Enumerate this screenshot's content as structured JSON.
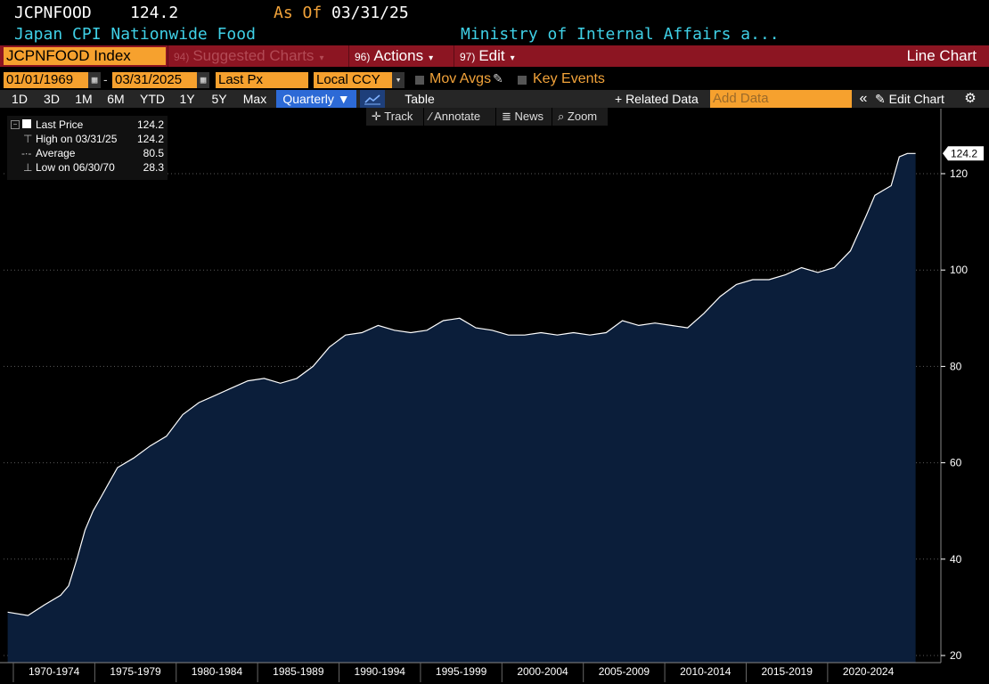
{
  "header": {
    "ticker": "JCPNFOOD",
    "last_value": "124.2",
    "as_of_label": "As Of",
    "as_of_date": "03/31/25",
    "description": "Japan CPI Nationwide Food",
    "source": "Ministry of Internal Affairs a..."
  },
  "menubar": {
    "security": "JCPNFOOD Index",
    "suggested_num": "94)",
    "suggested_label": "Suggested Charts",
    "actions_num": "96)",
    "actions_label": "Actions",
    "edit_num": "97)",
    "edit_label": "Edit",
    "view_label": "Line Chart",
    "caret": "▾"
  },
  "controls": {
    "start_date": "01/01/1969",
    "date_sep": "-",
    "end_date": "03/31/2025",
    "field": "Last Px",
    "currency": "Local CCY",
    "mov_avgs": "Mov Avgs",
    "key_events": "Key Events",
    "calendar_glyph": "▦",
    "pencil_glyph": "✎"
  },
  "range_buttons": [
    "1D",
    "3D",
    "1M",
    "6M",
    "YTD",
    "1Y",
    "5Y",
    "Max"
  ],
  "toolbar": {
    "period": "Quarterly",
    "table": "Table",
    "related": "+ Related Data",
    "add_data_placeholder": "Add Data",
    "collapse": "«",
    "edit_chart": "Edit Chart",
    "gear": "⚙",
    "track": "Track",
    "annotate": "Annotate",
    "news": "News",
    "zoom": "Zoom"
  },
  "legend": {
    "last_label": "Last Price",
    "last_value": "124.2",
    "high_label": "High on 03/31/25",
    "high_value": "124.2",
    "avg_label": "Average",
    "avg_value": "80.5",
    "low_label": "Low on 06/30/70",
    "low_value": "28.3"
  },
  "colors": {
    "line": "#ffffff",
    "area": "#0b1e3a",
    "grid": "#5a5a5a",
    "accent_orange": "#f6a12e",
    "header_red": "#8c1522",
    "cyan": "#3fd0e6"
  },
  "chart_data": {
    "type": "area",
    "series": [
      {
        "name": "Last Price",
        "x": [
          1969.25,
          1970.5,
          1971.5,
          1972.5,
          1973.0,
          1973.5,
          1974.0,
          1974.5,
          1975.0,
          1975.5,
          1976.0,
          1977.0,
          1978.0,
          1979.0,
          1980.0,
          1981.0,
          1982.0,
          1983.0,
          1984.0,
          1985.0,
          1986.0,
          1987.0,
          1988.0,
          1989.0,
          1990.0,
          1991.0,
          1992.0,
          1993.0,
          1994.0,
          1995.0,
          1996.0,
          1997.0,
          1998.0,
          1999.0,
          2000.0,
          2001.0,
          2002.0,
          2003.0,
          2004.0,
          2005.0,
          2006.0,
          2007.0,
          2008.0,
          2009.0,
          2010.0,
          2011.0,
          2012.0,
          2013.0,
          2014.0,
          2015.0,
          2016.0,
          2017.0,
          2018.0,
          2019.0,
          2020.0,
          2021.0,
          2022.0,
          2022.5,
          2023.0,
          2023.5,
          2024.0,
          2024.5,
          2025.0
        ],
        "y": [
          29.0,
          28.3,
          30.5,
          32.5,
          34.5,
          40.0,
          46.0,
          50.0,
          53.0,
          56.0,
          59.0,
          61.0,
          63.5,
          65.5,
          70.0,
          72.5,
          74.0,
          75.5,
          77.0,
          77.5,
          76.5,
          77.5,
          80.0,
          84.0,
          86.5,
          87.0,
          88.5,
          87.5,
          87.0,
          87.5,
          89.5,
          90.0,
          88.0,
          87.5,
          86.5,
          86.5,
          87.0,
          86.5,
          87.0,
          86.5,
          87.0,
          89.5,
          88.5,
          89.0,
          88.5,
          88.0,
          91.0,
          94.5,
          97.0,
          98.0,
          98.0,
          99.0,
          100.5,
          99.5,
          100.5,
          104.0,
          111.5,
          115.5,
          116.5,
          117.5,
          123.5,
          124.2,
          124.2
        ]
      }
    ],
    "xlim": [
      1969,
      2026.5
    ],
    "ylim": [
      20,
      130
    ],
    "y_ticks": [
      20,
      40,
      60,
      80,
      100,
      120
    ],
    "y_tick_labels": [
      "20",
      "40",
      "60",
      "80",
      "100",
      "120"
    ],
    "x_tick_labels": [
      "1970-1974",
      "1975-1979",
      "1980-1984",
      "1985-1989",
      "1990-1994",
      "1995-1999",
      "2000-2004",
      "2005-2009",
      "2010-2014",
      "2015-2019",
      "2020-2024"
    ],
    "x_tick_starts": [
      1969.6,
      1974.6,
      1979.6,
      1984.6,
      1989.6,
      1994.6,
      1999.6,
      2004.6,
      2009.6,
      2014.6,
      2019.6
    ],
    "last_value_label": "124.2",
    "grid": true,
    "legend": "top-left"
  }
}
